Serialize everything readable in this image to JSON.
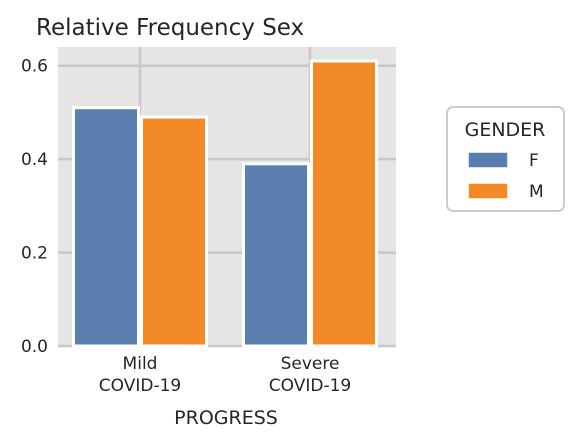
{
  "chart_data": {
    "type": "bar",
    "title": "Relative Frequency Sex",
    "xlabel": "PROGRESS",
    "ylabel": "",
    "categories": [
      [
        "Mild",
        "COVID-19"
      ],
      [
        "Severe",
        "COVID-19"
      ]
    ],
    "series": [
      {
        "name": "F",
        "values": [
          0.51,
          0.39
        ],
        "color": "#5a7eae"
      },
      {
        "name": "M",
        "values": [
          0.49,
          0.61
        ],
        "color": "#f28a28"
      }
    ],
    "ylim": [
      0,
      0.64
    ],
    "yticks": [
      0.0,
      0.2,
      0.4,
      0.6
    ],
    "ytick_labels": [
      "0.0",
      "0.2",
      "0.4",
      "0.6"
    ],
    "grid": true,
    "background": "#e5e5e5",
    "legend": {
      "title": "GENDER",
      "placement": "right"
    }
  }
}
